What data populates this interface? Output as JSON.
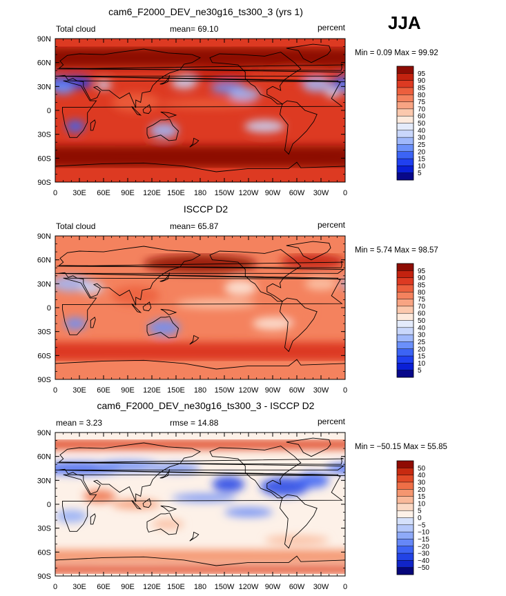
{
  "season": "JJA",
  "colors": {
    "abs_scale": [
      "#08088a",
      "#0a1fd6",
      "#2040f0",
      "#3c64f5",
      "#6b90fa",
      "#9fb8fb",
      "#c9d7fb",
      "#e4ebfb",
      "#fdeadd",
      "#fbc8ad",
      "#f8a483",
      "#f4825e",
      "#ec5f3d",
      "#dd3a22",
      "#c3220f",
      "#8d0c04"
    ],
    "diff_scale": [
      "#06067a",
      "#1024c8",
      "#2243e6",
      "#3d63f4",
      "#6688f7",
      "#8eaaf8",
      "#b5c8fa",
      "#d5e1fb",
      "#ecf0fb",
      "#fdf1e8",
      "#fbd9c5",
      "#f9b99a",
      "#f59670",
      "#ef6f47",
      "#e14a27",
      "#c72a10",
      "#8f0b03"
    ],
    "land": "#000000",
    "frame": "#000000"
  },
  "panels": [
    {
      "id": "model",
      "title": "cam6_F2000_DEV_ne30g16_ts300_3 (yrs 1)",
      "left_label": "Total cloud",
      "mid_label": "mean=  69.10",
      "units": "percent",
      "minmax": "Min =    0.09  Max =   99.92"
    },
    {
      "id": "obs",
      "title": "ISCCP D2",
      "left_label": "Total cloud",
      "mid_label": "mean=  65.87",
      "units": "percent",
      "minmax": "Min =    5.74  Max =   98.57"
    },
    {
      "id": "diff",
      "title": "cam6_F2000_DEV_ne30g16_ts300_3 - ISCCP D2",
      "left_label": "mean =    3.23",
      "mid_label": "rmse =   14.88",
      "units": "percent",
      "minmax": "Min =  −50.15  Max =   55.85"
    }
  ],
  "chart_data": [
    {
      "type": "heatmap",
      "title": "cam6_F2000_DEV_ne30g16_ts300_3 (yrs 1)",
      "variable": "Total cloud",
      "units": "percent",
      "mean": 69.1,
      "min": 0.09,
      "max": 99.92,
      "xlabels": [
        "0",
        "30E",
        "60E",
        "90E",
        "120E",
        "150E",
        "180",
        "150W",
        "120W",
        "90W",
        "60W",
        "30W",
        "0"
      ],
      "ylabels": [
        "90N",
        "60N",
        "30N",
        "0",
        "30S",
        "60S",
        "90S"
      ],
      "xlim": [
        0,
        360
      ],
      "ylim": [
        -90,
        90
      ],
      "colorbar_levels": [
        "95",
        "90",
        "85",
        "80",
        "75",
        "70",
        "60",
        "50",
        "40",
        "30",
        "25",
        "20",
        "15",
        "10",
        "5"
      ]
    },
    {
      "type": "heatmap",
      "title": "ISCCP D2",
      "variable": "Total cloud",
      "units": "percent",
      "mean": 65.87,
      "min": 5.74,
      "max": 98.57,
      "xlabels": [
        "0",
        "30E",
        "60E",
        "90E",
        "120E",
        "150E",
        "180",
        "150W",
        "120W",
        "90W",
        "60W",
        "30W",
        "0"
      ],
      "ylabels": [
        "90N",
        "60N",
        "30N",
        "0",
        "30S",
        "60S",
        "90S"
      ],
      "xlim": [
        0,
        360
      ],
      "ylim": [
        -90,
        90
      ],
      "colorbar_levels": [
        "95",
        "90",
        "85",
        "80",
        "75",
        "70",
        "60",
        "50",
        "40",
        "30",
        "25",
        "20",
        "15",
        "10",
        "5"
      ]
    },
    {
      "type": "heatmap",
      "title": "cam6_F2000_DEV_ne30g16_ts300_3 - ISCCP D2",
      "variable": "difference",
      "units": "percent",
      "mean": 3.23,
      "rmse": 14.88,
      "min": -50.15,
      "max": 55.85,
      "xlabels": [
        "0",
        "30E",
        "60E",
        "90E",
        "120E",
        "150E",
        "180",
        "150W",
        "120W",
        "90W",
        "60W",
        "30W",
        "0"
      ],
      "ylabels": [
        "90N",
        "60N",
        "30N",
        "0",
        "30S",
        "60S",
        "90S"
      ],
      "xlim": [
        0,
        360
      ],
      "ylim": [
        -90,
        90
      ],
      "colorbar_levels": [
        "50",
        "40",
        "30",
        "20",
        "15",
        "10",
        "5",
        "0",
        "−5",
        "−10",
        "−15",
        "−20",
        "−30",
        "−40",
        "−50"
      ]
    }
  ]
}
